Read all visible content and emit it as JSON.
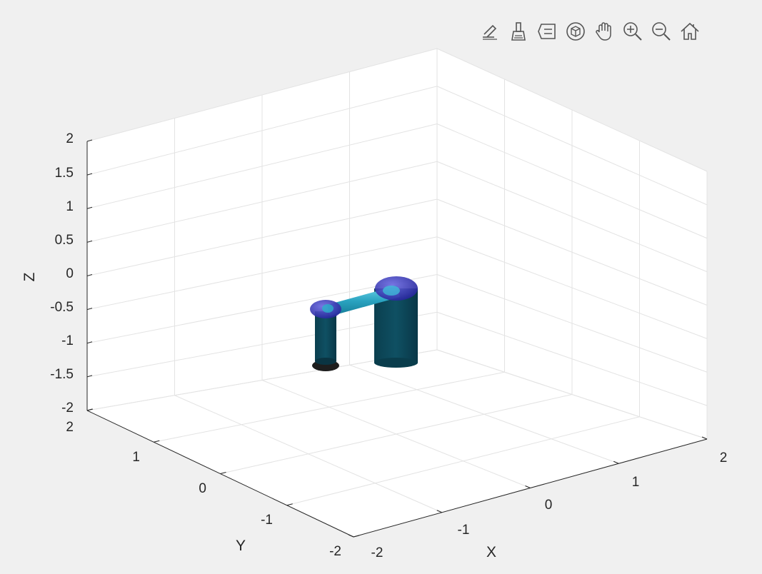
{
  "figure": {
    "background": "#f0f0f0",
    "axes_background": "#ffffff"
  },
  "toolbar": {
    "buttons": [
      {
        "icon": "edit-plot-icon",
        "tooltip": ""
      },
      {
        "icon": "brush-icon",
        "tooltip": ""
      },
      {
        "icon": "data-tips-icon",
        "tooltip": ""
      },
      {
        "icon": "rotate-3d-icon",
        "tooltip": ""
      },
      {
        "icon": "pan-hand-icon",
        "tooltip": ""
      },
      {
        "icon": "zoom-in-icon",
        "tooltip": ""
      },
      {
        "icon": "zoom-out-icon",
        "tooltip": ""
      },
      {
        "icon": "home-icon",
        "tooltip": ""
      }
    ]
  },
  "axes": {
    "xlabel": "X",
    "ylabel": "Y",
    "zlabel": "Z",
    "x_ticks": [
      "-2",
      "-1",
      "0",
      "1",
      "2"
    ],
    "y_ticks": [
      "-2",
      "-1",
      "0",
      "1",
      "2"
    ],
    "z_ticks": [
      "-2",
      "-1.5",
      "-1",
      "-0.5",
      "0",
      "0.5",
      "1",
      "1.5",
      "2"
    ],
    "xlim": [
      -2,
      2
    ],
    "ylim": [
      -2,
      2
    ],
    "zlim": [
      -2,
      2
    ],
    "grid": true,
    "view": "3-D"
  },
  "robot": {
    "description_colors": {
      "link": "#0d4a5c",
      "arm": "#2fa7c2",
      "joint": "#3a3ab8",
      "base": "#222222"
    }
  }
}
